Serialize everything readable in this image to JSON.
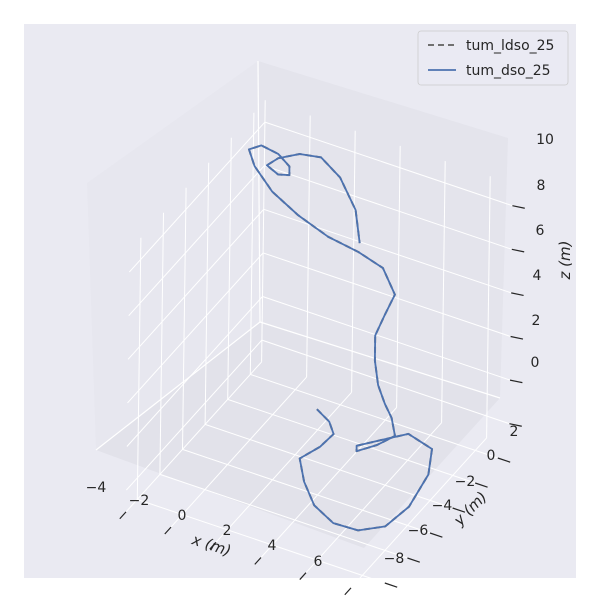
{
  "chart_data": {
    "type": "line",
    "projection": "3d",
    "title": "",
    "xlabel": "x (m)",
    "ylabel": "y (m)",
    "zlabel": "z (m)",
    "x_ticks": [
      "−4",
      "−2",
      "0",
      "2",
      "4",
      "6"
    ],
    "y_ticks": [
      "−8",
      "−6",
      "−4",
      "−2",
      "0",
      "2"
    ],
    "z_ticks": [
      "0",
      "2",
      "4",
      "6",
      "8",
      "10"
    ],
    "xlim": [
      -4,
      7
    ],
    "ylim": [
      -9,
      3
    ],
    "zlim": [
      -1,
      11
    ],
    "grid": true,
    "legend_position": "top-right",
    "series": [
      {
        "name": "tum_ldso_25",
        "color": "#707070",
        "style": "dashed",
        "x": [
          0.2,
          0.8,
          1.2,
          1.0,
          0.6,
          1.4,
          2.4,
          3.6,
          4.8,
          5.8,
          6.4,
          6.6,
          6.2,
          5.0,
          4.2,
          3.6,
          3.9,
          4.6,
          4.8,
          4.0,
          3.2,
          2.4,
          1.8,
          1.5,
          1.8,
          2.3,
          2.0,
          1.2,
          0.1,
          -1.2,
          -2.4,
          -3.4,
          -3.9,
          -3.6,
          -2.9,
          -2.2,
          -2.0,
          -2.4,
          -3.0,
          -2.7,
          -1.9,
          -1.0,
          0.0,
          1.0,
          1.5
        ],
        "y": [
          -0.5,
          -0.6,
          -1.0,
          -1.8,
          -2.8,
          -4.0,
          -5.1,
          -5.8,
          -6.0,
          -5.6,
          -4.7,
          -3.4,
          -2.3,
          -2.0,
          -2.8,
          -3.8,
          -4.4,
          -4.0,
          -2.8,
          -1.5,
          -0.5,
          0.5,
          1.4,
          2.0,
          2.2,
          2.1,
          1.6,
          1.0,
          0.5,
          0.4,
          0.5,
          0.9,
          1.4,
          1.9,
          2.0,
          1.6,
          1.2,
          1.0,
          1.2,
          1.6,
          1.9,
          2.0,
          1.7,
          1.1,
          0.5
        ],
        "z": [
          0.3,
          0.0,
          -0.2,
          -0.4,
          -0.5,
          -0.6,
          -0.7,
          -0.7,
          -0.5,
          -0.2,
          0.4,
          1.2,
          1.6,
          1.7,
          1.6,
          1.7,
          1.9,
          2.2,
          2.0,
          1.8,
          1.6,
          1.6,
          2.0,
          2.7,
          3.6,
          4.8,
          6.2,
          7.0,
          7.6,
          8.2,
          8.8,
          9.4,
          9.7,
          9.7,
          9.5,
          9.4,
          9.3,
          9.3,
          9.4,
          9.6,
          9.9,
          10.0,
          9.6,
          8.8,
          7.8
        ]
      },
      {
        "name": "tum_dso_25",
        "color": "#4c72b0",
        "style": "solid",
        "x": [
          0.2,
          0.8,
          1.2,
          1.0,
          0.6,
          1.4,
          2.4,
          3.6,
          4.8,
          5.8,
          6.4,
          6.6,
          6.2,
          5.0,
          4.2,
          3.6,
          3.9,
          4.6,
          4.8,
          4.0,
          3.2,
          2.4,
          1.8,
          1.5,
          1.8,
          2.3,
          2.0,
          1.2,
          0.1,
          -1.2,
          -2.4,
          -3.4,
          -3.9,
          -3.6,
          -2.9,
          -2.2,
          -2.0,
          -2.4,
          -3.0,
          -2.7,
          -1.9,
          -1.0,
          0.0,
          1.0,
          1.5
        ],
        "y": [
          -0.5,
          -0.6,
          -1.0,
          -1.8,
          -2.8,
          -4.0,
          -5.1,
          -5.8,
          -6.0,
          -5.6,
          -4.7,
          -3.4,
          -2.3,
          -2.0,
          -2.8,
          -3.8,
          -4.4,
          -4.0,
          -2.8,
          -1.5,
          -0.5,
          0.5,
          1.4,
          2.0,
          2.2,
          2.1,
          1.6,
          1.0,
          0.5,
          0.4,
          0.5,
          0.9,
          1.4,
          1.9,
          2.0,
          1.6,
          1.2,
          1.0,
          1.2,
          1.6,
          1.9,
          2.0,
          1.7,
          1.1,
          0.5
        ],
        "z": [
          0.3,
          0.0,
          -0.2,
          -0.4,
          -0.5,
          -0.6,
          -0.7,
          -0.7,
          -0.5,
          -0.2,
          0.4,
          1.2,
          1.6,
          1.7,
          1.6,
          1.7,
          1.9,
          2.2,
          2.0,
          1.8,
          1.6,
          1.6,
          2.0,
          2.7,
          3.6,
          4.8,
          6.2,
          7.0,
          7.6,
          8.2,
          8.8,
          9.4,
          9.7,
          9.7,
          9.5,
          9.4,
          9.3,
          9.3,
          9.4,
          9.6,
          9.9,
          10.0,
          9.6,
          8.8,
          7.8
        ]
      }
    ]
  }
}
